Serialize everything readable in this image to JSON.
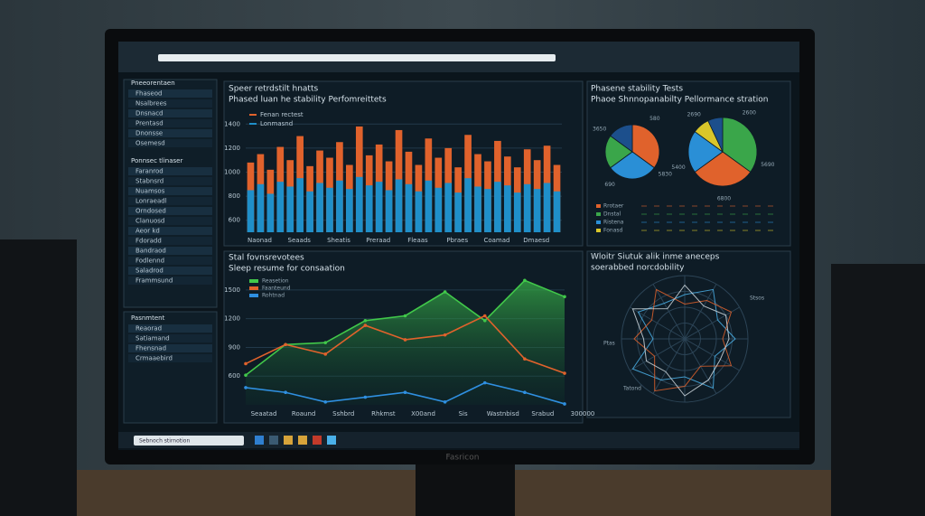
{
  "sidebar": {
    "sections": [
      {
        "title": "Pneeorentaen",
        "items": [
          "Fhaseod",
          "Nsalbrees",
          "Dnsnacd",
          "Prentasd",
          "Dnonsse",
          "Osemesd"
        ]
      },
      {
        "title": "Ponnsec tlinaser",
        "items": [
          "Faranrod",
          "Stabnsrd",
          "Nuamsos",
          "Lonraeadl",
          "Orndosed",
          "Clanuosd",
          "Aeor kd",
          "Fdoradd",
          "Bandraod",
          "Fodlennd",
          "Saladrod",
          "Frammsund"
        ]
      },
      {
        "title": "Pasnmtent",
        "items": [
          "Reaorad",
          "Satiamand",
          "Fhensnad",
          "Crmaaebird"
        ]
      }
    ]
  },
  "taskbar": {
    "search": "Sebnoch stirnotion"
  },
  "monitor": {
    "brand": "Fasricon"
  },
  "chart_data": [
    {
      "type": "bar",
      "title": "Speer retrdstilt hnatts",
      "subtitle": "Phased luan he stability Perfomreittets",
      "categories": [
        "Naonad",
        null,
        null,
        null,
        "Seaads",
        null,
        null,
        null,
        "Sheatis",
        null,
        null,
        null,
        "Preraad",
        null,
        null,
        null,
        "Fleaas",
        null,
        null,
        null,
        "Pbraes",
        null,
        null,
        null,
        "Coamad",
        null,
        null,
        null,
        "Dmaesd",
        null,
        null,
        null
      ],
      "series": [
        {
          "name": "Fenan rectest",
          "color": "#e0622c",
          "values": [
            1080,
            1150,
            1020,
            1210,
            1100,
            1300,
            1050,
            1180,
            1120,
            1250,
            1060,
            1380,
            1140,
            1230,
            1090,
            1350,
            1170,
            1060,
            1280,
            1120,
            1200,
            1040,
            1310,
            1150,
            1090,
            1260,
            1130,
            1040,
            1190,
            1100,
            1220,
            1060
          ]
        },
        {
          "name": "Lonmasnd",
          "color": "#1f8fc9",
          "values": [
            850,
            900,
            820,
            920,
            880,
            950,
            840,
            910,
            870,
            930,
            860,
            960,
            890,
            920,
            850,
            940,
            900,
            840,
            930,
            870,
            910,
            830,
            950,
            880,
            860,
            920,
            890,
            830,
            900,
            860,
            910,
            840
          ]
        }
      ],
      "ylim": [
        500,
        1500
      ],
      "yticks": [
        600,
        800,
        1000,
        1200,
        1400
      ],
      "grid": true
    },
    {
      "type": "pie",
      "title": "Phasene stability Tests",
      "subtitle": "Phaoe Shnnopanabilty Pellormance stration",
      "pies": [
        {
          "values": [
            35,
            30,
            20,
            15
          ],
          "colors": [
            "#e0622c",
            "#2a8fd6",
            "#3aa64a",
            "#1c4f8c"
          ],
          "labels": [
            "580",
            "5830",
            "690",
            "3650"
          ]
        },
        {
          "values": [
            35,
            30,
            20,
            8,
            7
          ],
          "colors": [
            "#3aa64a",
            "#e0622c",
            "#2a8fd6",
            "#d9c62a",
            "#1c4f8c"
          ],
          "labels": [
            "2600",
            "5690",
            "6800",
            "5400",
            "2690"
          ]
        }
      ],
      "legend": [
        "Rrotaer",
        "Dnstal",
        "Ristena",
        "Fonasd"
      ]
    },
    {
      "type": "line",
      "title": "Stal fovnsrevotees",
      "subtitle": "Sleep resume for consaation",
      "categories": [
        "Seaatad",
        "Roaund",
        "Sshbrd",
        "Rhkmst",
        "X00and",
        "Sis",
        "Wastnbisd",
        "Srabud",
        "300000"
      ],
      "series": [
        {
          "name": "Reasetion",
          "color": "#41c84a",
          "values": [
            610,
            930,
            950,
            1180,
            1230,
            1480,
            1180,
            1600,
            1430
          ]
        },
        {
          "name": "Faanteund",
          "color": "#e0622c",
          "values": [
            730,
            930,
            830,
            1130,
            980,
            1030,
            1230,
            780,
            630
          ]
        },
        {
          "name": "Rohtnad",
          "color": "#2f8fe0",
          "values": [
            480,
            430,
            330,
            380,
            430,
            330,
            530,
            430,
            310
          ]
        }
      ],
      "ylim": [
        300,
        1650
      ],
      "yticks": [
        600,
        900,
        1200,
        1500
      ],
      "grid": true
    },
    {
      "type": "radar",
      "title": "Wloitr Siutuk alik inme aneceps",
      "subtitle": "soerabbed norcdobility",
      "series": [
        {
          "name": "Ptas",
          "color": "#4ab0e8",
          "values": [
            80,
            55,
            90,
            60,
            75,
            95,
            50,
            85,
            65,
            70,
            90,
            60
          ]
        },
        {
          "name": "Tatond",
          "color": "#e0622c",
          "values": [
            60,
            85,
            50,
            75,
            95,
            55,
            80,
            60,
            90,
            55,
            70,
            85
          ]
        },
        {
          "name": "Stsos",
          "color": "#cfd8de",
          "values": [
            70,
            65,
            75,
            90,
            60,
            70,
            65,
            95,
            55,
            85,
            60,
            75
          ]
        }
      ],
      "ylim": [
        0,
        100
      ]
    }
  ]
}
